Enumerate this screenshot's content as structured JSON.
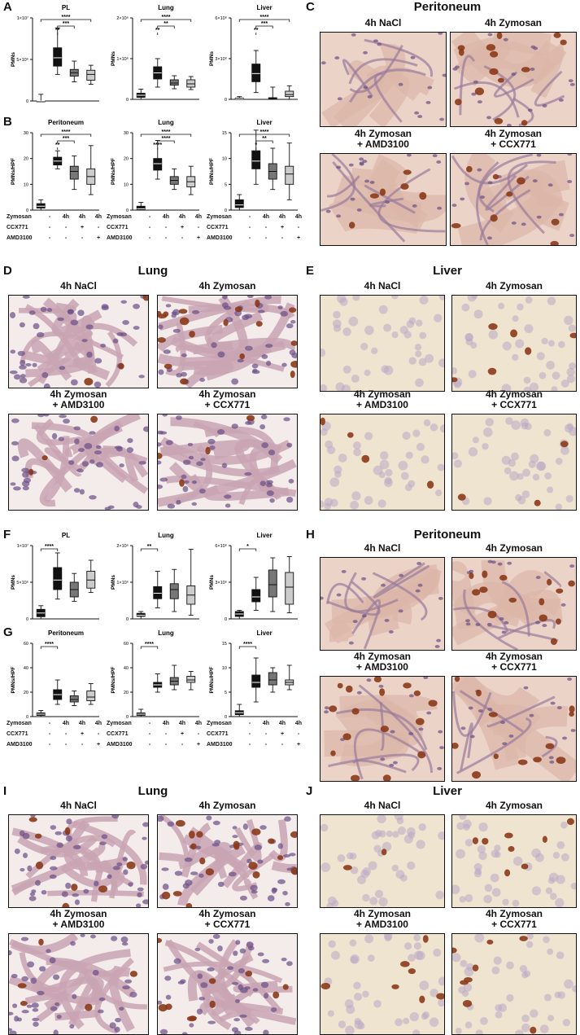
{
  "panels": {
    "A": {
      "letter": "A"
    },
    "B": {
      "letter": "B"
    },
    "C": {
      "letter": "C"
    },
    "D": {
      "letter": "D"
    },
    "E": {
      "letter": "E"
    },
    "F": {
      "letter": "F"
    },
    "G": {
      "letter": "G"
    },
    "H": {
      "letter": "H"
    },
    "I": {
      "letter": "I"
    },
    "J": {
      "letter": "J"
    }
  },
  "sections": {
    "C": "Peritoneum",
    "D": "Lung",
    "E": "Liver",
    "H": "Peritoneum",
    "I": "Lung",
    "J": "Liver"
  },
  "image_labels": {
    "nacl": "4h NaCl",
    "zymosan": "4h Zymosan",
    "amd_line1": "4h Zymosan",
    "amd_line2": "+ AMD3100",
    "ccx_line1": "4h Zymosan",
    "ccx_line2": "+ CCX771"
  },
  "conditions": {
    "rows": [
      "Zymosan",
      "CCX771",
      "AMD3100"
    ],
    "values": [
      [
        "-",
        "4h",
        "4h",
        "4h"
      ],
      [
        "-",
        "-",
        "+",
        "-"
      ],
      [
        "-",
        "-",
        "-",
        "+"
      ]
    ]
  },
  "colors": {
    "nacl": "#111111",
    "zymosan": "#111111",
    "ccx771": "#777777",
    "amd3100": "#cccccc",
    "stain_brown": "#8b3a1a",
    "stain_purple": "#6b4f86"
  },
  "chart_data": [
    {
      "id": "A-PL",
      "type": "box",
      "title": "PL",
      "ylabel": "PMNs",
      "yticks": [
        "0",
        "5×10⁶",
        "1×10⁷"
      ],
      "ylim": [
        0,
        10000000
      ],
      "series": [
        {
          "name": "NaCl",
          "median": 0,
          "q1": 0,
          "q3": 0,
          "min": 0,
          "max": 800000
        },
        {
          "name": "Zymosan",
          "median": 5200000,
          "q1": 4200000,
          "q3": 6400000,
          "min": 3200000,
          "max": 8800000
        },
        {
          "name": "CCX771",
          "median": 3400000,
          "q1": 3000000,
          "q3": 3800000,
          "min": 2300000,
          "max": 4800000
        },
        {
          "name": "AMD3100",
          "median": 3200000,
          "q1": 2500000,
          "q3": 3700000,
          "min": 2000000,
          "max": 4300000
        }
      ],
      "significance": [
        "****",
        "***",
        "**"
      ]
    },
    {
      "id": "A-Lung",
      "type": "box",
      "title": "Lung",
      "ylabel": "PMNs",
      "yticks": [
        "0",
        "1×10⁶",
        "2×10⁶"
      ],
      "ylim": [
        0,
        2000000
      ],
      "series": [
        {
          "name": "NaCl",
          "median": 100000,
          "q1": 50000,
          "q3": 150000,
          "min": 0,
          "max": 250000
        },
        {
          "name": "Zymosan",
          "median": 650000,
          "q1": 500000,
          "q3": 800000,
          "min": 300000,
          "max": 1000000
        },
        {
          "name": "CCX771",
          "median": 400000,
          "q1": 350000,
          "q3": 480000,
          "min": 260000,
          "max": 580000
        },
        {
          "name": "AMD3100",
          "median": 380000,
          "q1": 300000,
          "q3": 480000,
          "min": 240000,
          "max": 560000
        }
      ],
      "significance": [
        "****",
        "**",
        "**"
      ]
    },
    {
      "id": "A-Liver",
      "type": "box",
      "title": "Liver",
      "ylabel": "PMNs",
      "yticks": [
        "0",
        "3×10⁶",
        "6×10⁶"
      ],
      "ylim": [
        0,
        6000000
      ],
      "series": [
        {
          "name": "NaCl",
          "median": 50000,
          "q1": 20000,
          "q3": 100000,
          "min": 0,
          "max": 200000
        },
        {
          "name": "Zymosan",
          "median": 1900000,
          "q1": 1300000,
          "q3": 2600000,
          "min": 500000,
          "max": 3600000
        },
        {
          "name": "CCX771",
          "median": 80000,
          "q1": 40000,
          "q3": 120000,
          "min": 0,
          "max": 900000
        },
        {
          "name": "AMD3100",
          "median": 350000,
          "q1": 200000,
          "q3": 600000,
          "min": 0,
          "max": 1000000
        }
      ],
      "significance": [
        "****",
        "***",
        "**"
      ]
    },
    {
      "id": "B-Peritoneum",
      "type": "box",
      "title": "Peritoneum",
      "ylabel": "PMNs/HPF",
      "yticks": [
        "0",
        "10",
        "20",
        "30"
      ],
      "ylim": [
        0,
        30
      ],
      "series": [
        {
          "name": "NaCl",
          "median": 1.5,
          "q1": 0.8,
          "q3": 2.5,
          "min": 0,
          "max": 4
        },
        {
          "name": "Zymosan",
          "median": 19,
          "q1": 17.5,
          "q3": 20.5,
          "min": 16,
          "max": 23
        },
        {
          "name": "CCX771",
          "median": 15,
          "q1": 12,
          "q3": 17,
          "min": 8,
          "max": 21
        },
        {
          "name": "AMD3100",
          "median": 13,
          "q1": 10,
          "q3": 16,
          "min": 6,
          "max": 25
        }
      ],
      "significance": [
        "****",
        "***",
        "**"
      ]
    },
    {
      "id": "B-Lung",
      "type": "box",
      "title": "Lung",
      "ylabel": "PMNs/HPF",
      "yticks": [
        "0",
        "10",
        "20",
        "30"
      ],
      "ylim": [
        0,
        30
      ],
      "series": [
        {
          "name": "NaCl",
          "median": 0.5,
          "q1": 0,
          "q3": 1.5,
          "min": 0,
          "max": 3
        },
        {
          "name": "Zymosan",
          "median": 18,
          "q1": 15.5,
          "q3": 20,
          "min": 12,
          "max": 27
        },
        {
          "name": "CCX771",
          "median": 11.5,
          "q1": 10,
          "q3": 13,
          "min": 8,
          "max": 16
        },
        {
          "name": "AMD3100",
          "median": 11,
          "q1": 9,
          "q3": 13,
          "min": 6,
          "max": 17
        }
      ],
      "significance": [
        "****",
        "****",
        "****"
      ]
    },
    {
      "id": "B-Liver",
      "type": "box",
      "title": "Liver",
      "ylabel": "PMNs/HPF",
      "yticks": [
        "0",
        "5",
        "10",
        "15"
      ],
      "ylim": [
        0,
        15
      ],
      "series": [
        {
          "name": "NaCl",
          "median": 1,
          "q1": 0.5,
          "q3": 2,
          "min": 0,
          "max": 3
        },
        {
          "name": "Zymosan",
          "median": 9.5,
          "q1": 8,
          "q3": 11.5,
          "min": 5,
          "max": 15.5
        },
        {
          "name": "CCX771",
          "median": 7.5,
          "q1": 6,
          "q3": 9,
          "min": 4,
          "max": 12
        },
        {
          "name": "AMD3100",
          "median": 7,
          "q1": 5,
          "q3": 8.5,
          "min": 2,
          "max": 13
        }
      ],
      "significance": [
        "****",
        "**",
        "*"
      ]
    },
    {
      "id": "F-PL",
      "type": "box",
      "title": "PL",
      "ylabel": "PMNs",
      "yticks": [
        "0",
        "5×10⁶",
        "1×10⁷"
      ],
      "ylim": [
        0,
        10000000
      ],
      "series": [
        {
          "name": "NaCl",
          "median": 800000,
          "q1": 300000,
          "q3": 1300000,
          "min": 0,
          "max": 1800000
        },
        {
          "name": "Zymosan",
          "median": 5300000,
          "q1": 4000000,
          "q3": 7000000,
          "min": 2700000,
          "max": 9000000
        },
        {
          "name": "CCX771",
          "median": 4000000,
          "q1": 3000000,
          "q3": 5000000,
          "min": 2400000,
          "max": 6200000
        },
        {
          "name": "AMD3100",
          "median": 5300000,
          "q1": 4200000,
          "q3": 6500000,
          "min": 3600000,
          "max": 8000000
        }
      ],
      "significance": [
        "****"
      ]
    },
    {
      "id": "F-Lung",
      "type": "box",
      "title": "Lung",
      "ylabel": "PMNs",
      "yticks": [
        "0",
        "1×10⁶",
        "2×10⁶"
      ],
      "ylim": [
        0,
        2000000
      ],
      "series": [
        {
          "name": "NaCl",
          "median": 100000,
          "q1": 70000,
          "q3": 150000,
          "min": 0,
          "max": 200000
        },
        {
          "name": "Zymosan",
          "median": 700000,
          "q1": 550000,
          "q3": 880000,
          "min": 300000,
          "max": 1300000
        },
        {
          "name": "CCX771",
          "median": 800000,
          "q1": 550000,
          "q3": 960000,
          "min": 200000,
          "max": 1350000
        },
        {
          "name": "AMD3100",
          "median": 650000,
          "q1": 400000,
          "q3": 900000,
          "min": 100000,
          "max": 1900000
        }
      ],
      "significance": [
        "**"
      ]
    },
    {
      "id": "F-Liver",
      "type": "box",
      "title": "Liver",
      "ylabel": "PMNs",
      "yticks": [
        "0",
        "3×10⁶",
        "6×10⁶"
      ],
      "ylim": [
        0,
        6000000
      ],
      "series": [
        {
          "name": "NaCl",
          "median": 400000,
          "q1": 200000,
          "q3": 600000,
          "min": 0,
          "max": 700000
        },
        {
          "name": "Zymosan",
          "median": 1800000,
          "q1": 1400000,
          "q3": 2400000,
          "min": 700000,
          "max": 3400000
        },
        {
          "name": "CCX771",
          "median": 2800000,
          "q1": 1800000,
          "q3": 4000000,
          "min": 600000,
          "max": 5000000
        },
        {
          "name": "AMD3100",
          "median": 2600000,
          "q1": 1200000,
          "q3": 3800000,
          "min": 500000,
          "max": 5100000
        }
      ],
      "significance": [
        "*"
      ]
    },
    {
      "id": "G-Peritoneum",
      "type": "box",
      "title": "Peritoneum",
      "ylabel": "PMNs/HPF",
      "yticks": [
        "0",
        "20",
        "40",
        "60"
      ],
      "ylim": [
        0,
        60
      ],
      "series": [
        {
          "name": "NaCl",
          "median": 2,
          "q1": 1,
          "q3": 3,
          "min": 0,
          "max": 5
        },
        {
          "name": "Zymosan",
          "median": 18,
          "q1": 14,
          "q3": 22,
          "min": 10,
          "max": 30
        },
        {
          "name": "CCX771",
          "median": 14,
          "q1": 12,
          "q3": 17,
          "min": 9,
          "max": 21
        },
        {
          "name": "AMD3100",
          "median": 16,
          "q1": 13,
          "q3": 21,
          "min": 10,
          "max": 27
        }
      ],
      "significance": [
        "****"
      ]
    },
    {
      "id": "G-Lung",
      "type": "box",
      "title": "Lung",
      "ylabel": "PMNs/HPF",
      "yticks": [
        "0",
        "20",
        "40",
        "60"
      ],
      "ylim": [
        0,
        60
      ],
      "series": [
        {
          "name": "NaCl",
          "median": 2,
          "q1": 1,
          "q3": 3,
          "min": 0,
          "max": 6
        },
        {
          "name": "Zymosan",
          "median": 26,
          "q1": 24,
          "q3": 28,
          "min": 20,
          "max": 35
        },
        {
          "name": "CCX771",
          "median": 29,
          "q1": 26,
          "q3": 32,
          "min": 22,
          "max": 42
        },
        {
          "name": "AMD3100",
          "median": 30,
          "q1": 28,
          "q3": 33,
          "min": 22,
          "max": 37
        }
      ],
      "significance": [
        "****"
      ]
    },
    {
      "id": "G-Liver",
      "type": "box",
      "title": "Liver",
      "ylabel": "PMNs/HPF",
      "yticks": [
        "0",
        "5",
        "10",
        "15"
      ],
      "ylim": [
        0,
        15
      ],
      "series": [
        {
          "name": "NaCl",
          "median": 0.8,
          "q1": 0.4,
          "q3": 1.2,
          "min": 0,
          "max": 2.5
        },
        {
          "name": "Zymosan",
          "median": 7,
          "q1": 6,
          "q3": 8.5,
          "min": 3,
          "max": 12
        },
        {
          "name": "CCX771",
          "median": 7.5,
          "q1": 6.5,
          "q3": 9,
          "min": 5,
          "max": 10
        },
        {
          "name": "AMD3100",
          "median": 7,
          "q1": 6.5,
          "q3": 7.5,
          "min": 5.5,
          "max": 10.5
        }
      ],
      "significance": [
        "****"
      ]
    }
  ]
}
